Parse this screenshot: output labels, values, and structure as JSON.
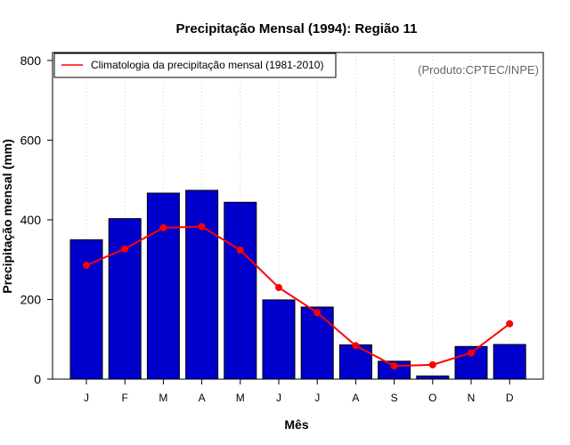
{
  "chart_data": {
    "type": "bar",
    "title": "Precipitação Mensal (1994): Região 11",
    "xlabel": "Mês",
    "ylabel": "Precipitação mensal (mm)",
    "categories": [
      "J",
      "F",
      "M",
      "A",
      "M",
      "J",
      "J",
      "A",
      "S",
      "O",
      "N",
      "D"
    ],
    "ylim": [
      0,
      820
    ],
    "yticks": [
      0,
      200,
      400,
      600,
      800
    ],
    "grid": "vertical-dotted",
    "series": [
      {
        "name": "Precipitação mensal (1994)",
        "type": "bar",
        "color": "#0000cc",
        "values": [
          350,
          403,
          467,
          474,
          444,
          199,
          181,
          86,
          45,
          8,
          82,
          87
        ]
      },
      {
        "name": "Climatologia da precipitação mensal (1981-2010)",
        "type": "line",
        "color": "#ff0000",
        "values": [
          286,
          327,
          380,
          383,
          324,
          230,
          167,
          84,
          33,
          36,
          66,
          139
        ]
      }
    ],
    "legend": {
      "placement": "top-left",
      "entries": [
        "Climatologia da precipitação mensal (1981-2010)"
      ]
    },
    "annotations": [
      "(Produto:CPTEC/INPE)"
    ]
  }
}
